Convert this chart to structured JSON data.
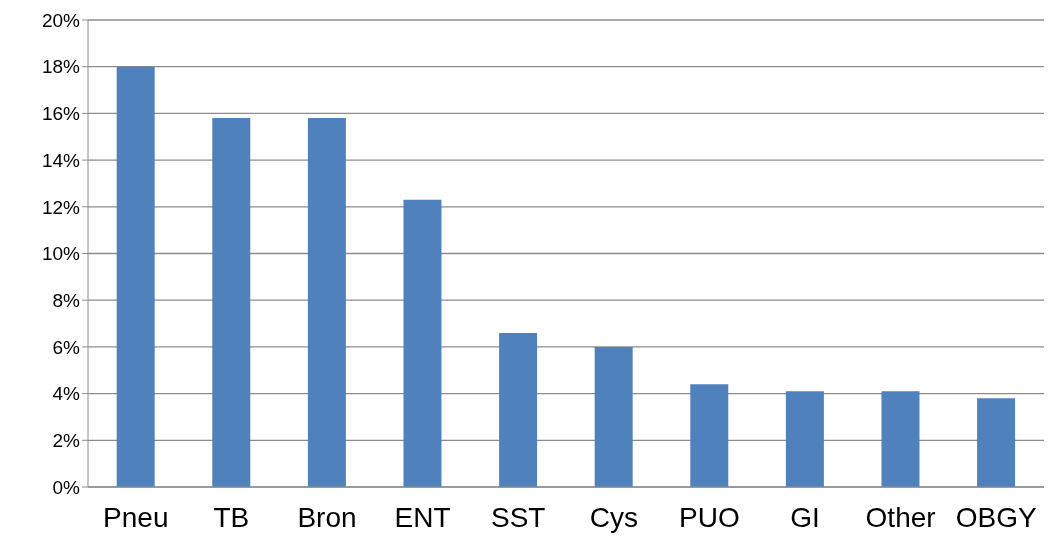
{
  "chart_data": {
    "type": "bar",
    "categories": [
      "Pneu",
      "TB",
      "Bron",
      "ENT",
      "SST",
      "Cys",
      "PUO",
      "GI",
      "Other",
      "OBGY"
    ],
    "values": [
      18,
      15.8,
      15.8,
      12.3,
      6.6,
      6.0,
      4.4,
      4.1,
      4.1,
      3.8
    ],
    "color": "#4f81bd",
    "ylim": [
      0,
      20
    ],
    "yticks": [
      {
        "value": 0,
        "label": "0%"
      },
      {
        "value": 2,
        "label": "2%"
      },
      {
        "value": 4,
        "label": "4%"
      },
      {
        "value": 6,
        "label": "6%"
      },
      {
        "value": 8,
        "label": "8%"
      },
      {
        "value": 10,
        "label": "10%"
      },
      {
        "value": 12,
        "label": "12%"
      },
      {
        "value": 14,
        "label": "14%"
      },
      {
        "value": 16,
        "label": "16%"
      },
      {
        "value": 18,
        "label": "18%"
      },
      {
        "value": 20,
        "label": "20%"
      }
    ],
    "grid": "y"
  }
}
